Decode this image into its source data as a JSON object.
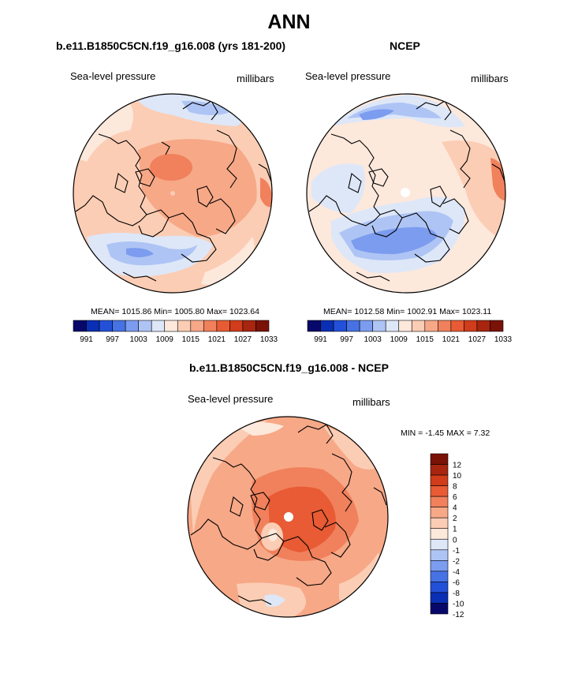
{
  "page": {
    "title": "ANN"
  },
  "panels": [
    {
      "title": "b.e11.B1850C5CN.f19_g16.008 (yrs 181-200)",
      "left_label": "Sea-level pressure",
      "right_label": "millibars",
      "stats": "MEAN= 1015.86  Min= 1005.80  Max= 1023.64"
    },
    {
      "title": "NCEP",
      "left_label": "Sea-level pressure",
      "right_label": "millibars",
      "stats": "MEAN= 1012.58  Min= 1002.91  Max= 1023.11"
    },
    {
      "title": "b.e11.B1850C5CN.f19_g16.008 - NCEP",
      "left_label": "Sea-level pressure",
      "right_label": "millibars",
      "stats": "MIN =  -1.45 MAX =   7.32"
    }
  ],
  "colors": {
    "abs_scale": [
      "#08086b",
      "#0a2fb4",
      "#2350d8",
      "#4672e4",
      "#7b9cef",
      "#aec4f4",
      "#dde7f8",
      "#fde8dc",
      "#fbcdb4",
      "#f7a887",
      "#f0815c",
      "#e85b34",
      "#d13c1a",
      "#a8250f",
      "#7a1207"
    ],
    "diff_scale": [
      "#08086b",
      "#0a2fb4",
      "#2350d8",
      "#4672e4",
      "#7b9cef",
      "#aec4f4",
      "#dde7f8",
      "#fde8dc",
      "#fbcdb4",
      "#f7a887",
      "#f0815c",
      "#e85b34",
      "#d13c1a",
      "#a8250f",
      "#7a1207"
    ]
  },
  "chart_data": [
    {
      "type": "heatmap",
      "title": "b.e11.B1850C5CN.f19_g16.008 (yrs 181-200)",
      "projection": "polar stereographic, Northern Hemisphere",
      "variable": "Sea-level pressure",
      "units": "millibars",
      "mean": 1015.86,
      "min": 1005.8,
      "max": 1023.64,
      "colorbar_ticks": [
        991,
        997,
        1003,
        1009,
        1015,
        1021,
        1027,
        1033
      ],
      "colorbar_tick_labels": [
        "991",
        "997",
        "1003",
        "1009",
        "1015",
        "1021",
        "1027",
        "1033"
      ]
    },
    {
      "type": "heatmap",
      "title": "NCEP",
      "projection": "polar stereographic, Northern Hemisphere",
      "variable": "Sea-level pressure",
      "units": "millibars",
      "mean": 1012.58,
      "min": 1002.91,
      "max": 1023.11,
      "colorbar_ticks": [
        991,
        997,
        1003,
        1009,
        1015,
        1021,
        1027,
        1033
      ],
      "colorbar_tick_labels": [
        "991",
        "997",
        "1003",
        "1009",
        "1015",
        "1021",
        "1027",
        "1033"
      ]
    },
    {
      "type": "heatmap",
      "title": "b.e11.B1850C5CN.f19_g16.008 - NCEP",
      "projection": "polar stereographic, Northern Hemisphere",
      "variable": "Sea-level pressure",
      "units": "millibars",
      "min": -1.45,
      "max": 7.32,
      "colorbar_ticks": [
        12,
        10,
        8,
        6,
        4,
        2,
        1,
        0,
        -1,
        -2,
        -4,
        -6,
        -8,
        -10,
        -12
      ],
      "colorbar_tick_labels": [
        "12",
        "10",
        "8",
        "6",
        "4",
        "2",
        "1",
        "0",
        "-1",
        "-2",
        "-4",
        "-6",
        "-8",
        "-10",
        "-12"
      ]
    }
  ]
}
